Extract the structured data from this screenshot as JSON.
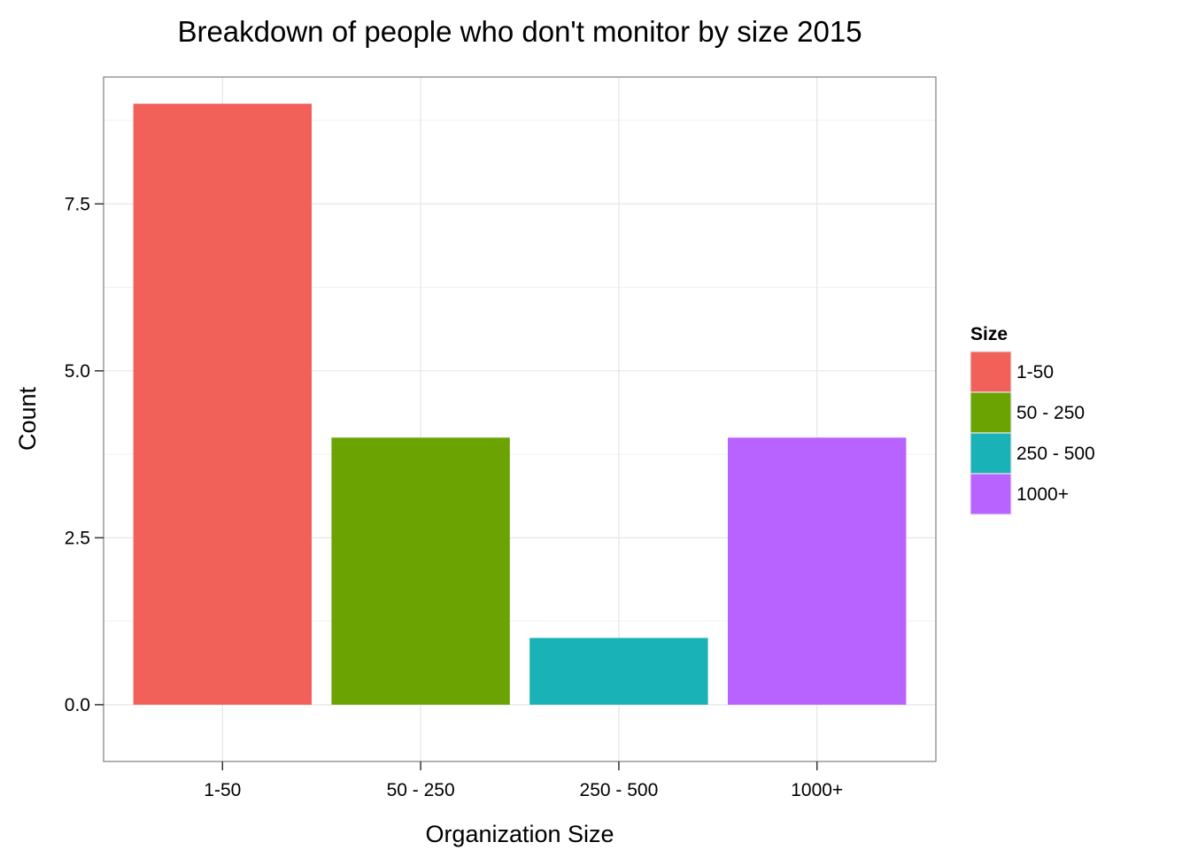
{
  "chart_data": {
    "type": "bar",
    "title": "Breakdown of people who don't monitor by size 2015",
    "xlabel": "Organization Size",
    "ylabel": "Count",
    "categories": [
      "1-50",
      "50 - 250",
      "250 - 500",
      "1000+"
    ],
    "values": [
      9,
      4,
      1,
      4
    ],
    "colors": [
      "#F2605A",
      "#6BA303",
      "#19B2B7",
      "#B862FF"
    ],
    "ylim": [
      -0.85,
      9.4
    ],
    "yticks": [
      0.0,
      2.5,
      5.0,
      7.5
    ],
    "ytick_labels": [
      "0.0",
      "2.5",
      "5.0",
      "7.5"
    ],
    "grid": true,
    "legend": {
      "title": "Size",
      "placement": "right",
      "items": [
        "1-50",
        "50 - 250",
        "250 - 500",
        "1000+"
      ]
    }
  }
}
